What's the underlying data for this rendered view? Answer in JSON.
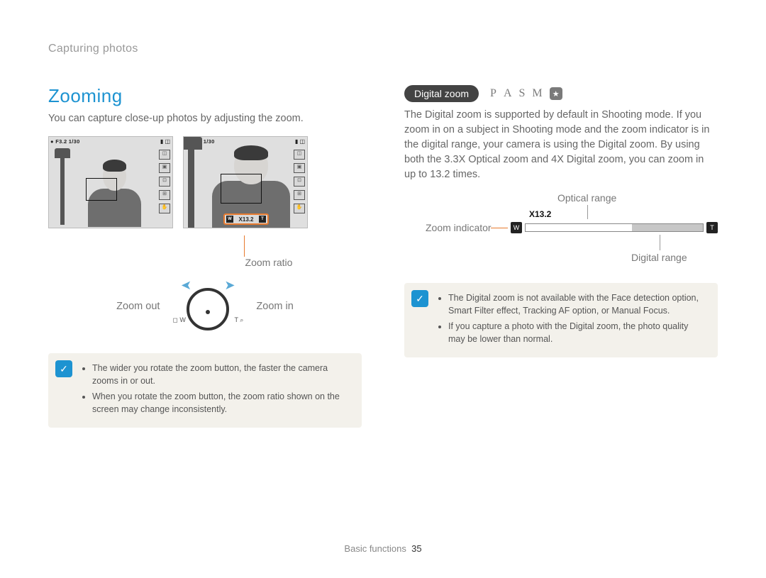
{
  "breadcrumb": "Capturing photos",
  "left": {
    "title": "Zooming",
    "intro": "You can capture close-up photos by adjusting the zoom.",
    "lcd": {
      "top_left": "F3.2 1/30",
      "zoom_tag_value": "X13.2",
      "zoom_tag_w": "W",
      "zoom_tag_t": "T"
    },
    "zoom_ratio_label": "Zoom ratio",
    "zoom_out_label": "Zoom out",
    "zoom_in_label": "Zoom in",
    "dial_w": "◻ W",
    "dial_t": "T ⌕",
    "note1": "The wider you rotate the zoom button, the faster the camera zooms in or out.",
    "note2": "When you rotate the zoom button, the zoom ratio shown on the screen may change inconsistently."
  },
  "right": {
    "pill": "Digital zoom",
    "mode_p": "P",
    "mode_a": "A",
    "mode_s": "S",
    "mode_m": "M",
    "body": "The Digital zoom is supported by default in Shooting mode. If you zoom in on a subject in Shooting mode and the zoom indicator is in the digital range, your camera is using the Digital zoom. By using both the 3.3X Optical zoom and 4X Digital zoom, you can zoom in up to 13.2 times.",
    "optical_label": "Optical range",
    "digital_label": "Digital range",
    "zi_label": "Zoom indicator",
    "x_value": "X13.2",
    "w": "W",
    "t": "T",
    "note1": "The Digital zoom is not available with the Face detection option, Smart Filter effect, Tracking AF option, or Manual Focus.",
    "note2": "If you capture a photo with the Digital zoom, the photo quality may be lower than normal."
  },
  "footer": {
    "section": "Basic functions",
    "page": "35"
  }
}
